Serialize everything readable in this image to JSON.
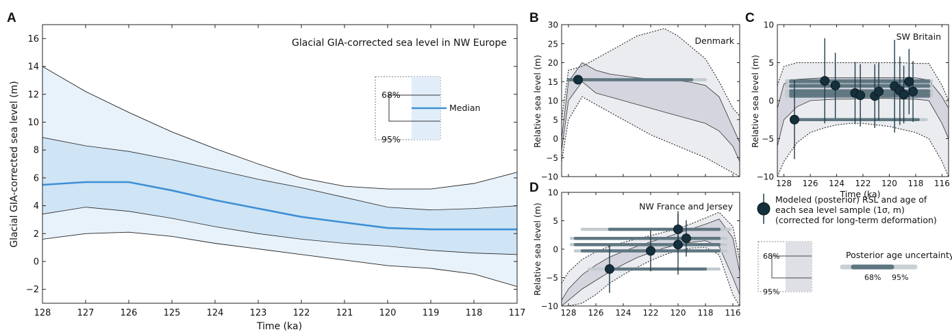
{
  "chart_data": [
    {
      "panel": "A",
      "type": "area",
      "title": "Glacial GIA-corrected sea level in NW Europe",
      "xlabel": "Time (ka)",
      "ylabel": "Glacial GIA-corrected sea level (m)",
      "xlim": [
        128,
        117
      ],
      "ylim": [
        -3,
        17
      ],
      "xticks": [
        "128",
        "127",
        "126",
        "125",
        "124",
        "123",
        "122",
        "121",
        "120",
        "119",
        "118",
        "117"
      ],
      "yticks": [
        "−2",
        "0",
        "2",
        "4",
        "6",
        "8",
        "10",
        "12",
        "14",
        "16"
      ],
      "x": [
        128,
        127,
        126,
        125,
        124,
        123,
        122,
        121,
        120,
        119,
        118,
        117
      ],
      "median": [
        5.5,
        5.7,
        5.7,
        5.1,
        4.4,
        3.8,
        3.2,
        2.8,
        2.4,
        2.3,
        2.3,
        2.3
      ],
      "lower68": [
        3.4,
        3.9,
        3.6,
        3.1,
        2.5,
        2.0,
        1.6,
        1.3,
        1.1,
        0.8,
        0.6,
        0.5
      ],
      "upper68": [
        8.9,
        8.3,
        7.9,
        7.3,
        6.6,
        5.9,
        5.3,
        4.6,
        3.9,
        3.7,
        3.8,
        4.0
      ],
      "lower95": [
        1.6,
        2.0,
        2.1,
        1.8,
        1.3,
        0.9,
        0.5,
        0.1,
        -0.3,
        -0.5,
        -0.9,
        -1.8
      ],
      "upper95": [
        14.0,
        12.2,
        10.7,
        9.3,
        8.1,
        7.0,
        6.0,
        5.4,
        5.2,
        5.2,
        5.6,
        6.4
      ],
      "legend": {
        "inner": "68%",
        "outer": "95%",
        "median": "Median"
      },
      "colors": {
        "band95": "#e8f2fb",
        "band68": "#cfe4f4",
        "median": "#3d8fd6"
      }
    },
    {
      "panel": "B",
      "type": "area",
      "title": "Denmark",
      "xlabel": "",
      "ylabel": "Relative sea level (m)",
      "xlim": [
        128.5,
        115.5
      ],
      "ylim": [
        -10,
        30
      ],
      "yticks": [
        "30",
        "25",
        "20",
        "15",
        "10",
        "5",
        "0",
        "−5",
        "−10"
      ],
      "x": [
        128.5,
        128,
        127,
        126,
        125,
        124,
        123,
        122,
        121,
        120,
        119,
        118,
        117,
        116,
        115.5
      ],
      "lower95": [
        -6,
        5,
        11,
        9,
        7,
        5,
        3,
        1,
        -0.5,
        -2,
        -3.5,
        -5,
        -7,
        -9,
        -10
      ],
      "upper95": [
        5,
        18,
        19,
        21,
        23,
        25,
        27,
        28,
        29,
        27,
        24,
        21,
        15,
        8,
        6
      ],
      "lower68": [
        -3,
        10,
        15,
        12,
        11,
        10,
        9,
        8,
        7,
        6,
        5,
        4,
        2,
        -2,
        -6
      ],
      "upper68": [
        0,
        15,
        20,
        18,
        17,
        16.5,
        16,
        15.7,
        15.5,
        15.3,
        14.8,
        14,
        11,
        3,
        -1
      ],
      "samples": [
        {
          "rsl": 15.5,
          "sigma": 0.8,
          "age": 127.3,
          "age68": [
            128,
            119
          ],
          "age95": [
            128,
            118
          ]
        }
      ],
      "colors": {
        "band95": "#ebecf0",
        "band68": "#d4d5de",
        "ink": "#333333"
      }
    },
    {
      "panel": "C",
      "type": "area",
      "title": "SW Britain",
      "xlabel": "Time (ka)",
      "ylabel": "Relative sea level (m)",
      "xlim": [
        128.5,
        115.5
      ],
      "ylim": [
        -10,
        10
      ],
      "xticks": [
        "128",
        "126",
        "124",
        "122",
        "120",
        "118",
        "116"
      ],
      "yticks": [
        "10",
        "5",
        "0",
        "−5",
        "−10"
      ],
      "x": [
        128.5,
        128,
        127,
        126,
        125,
        124,
        123,
        122,
        121,
        120,
        119,
        118,
        117,
        116,
        115.5
      ],
      "lower95": [
        -10,
        -8,
        -5.5,
        -4.2,
        -3.6,
        -3.2,
        -3.0,
        -3.0,
        -3.2,
        -3.4,
        -3.8,
        -4.2,
        -5,
        -8,
        -10
      ],
      "upper95": [
        2,
        4.5,
        5,
        5,
        5,
        5,
        5,
        5,
        5,
        5,
        5,
        4.9,
        4.9,
        2,
        0
      ],
      "lower68": [
        -6,
        -2.5,
        -0.8,
        0,
        0.1,
        0.2,
        0.2,
        0.3,
        0.3,
        0.3,
        0.2,
        0.2,
        0,
        -3,
        -5
      ],
      "upper68": [
        -1,
        2.2,
        2.8,
        2.9,
        3.0,
        3.0,
        3.0,
        3.0,
        3.0,
        3.0,
        3.0,
        3.0,
        2.7,
        0.5,
        -1
      ],
      "samples": [
        {
          "rsl": -2.5,
          "sigma": 5.2,
          "age": 127.2,
          "age68": [
            127.2,
            117.8
          ],
          "age95": [
            127.2,
            117.2
          ]
        },
        {
          "rsl": 2.6,
          "sigma": 5.6,
          "age": 124.9,
          "age68": [
            127.5,
            117.0
          ],
          "age95": [
            127.8,
            116.8
          ]
        },
        {
          "rsl": 2.0,
          "sigma": 4.3,
          "age": 124.1,
          "age68": [
            127.5,
            117.0
          ],
          "age95": [
            127.8,
            116.8
          ]
        },
        {
          "rsl": 1.0,
          "sigma": 4.1,
          "age": 122.6,
          "age68": [
            127.5,
            117.0
          ],
          "age95": [
            127.8,
            116.8
          ]
        },
        {
          "rsl": 0.7,
          "sigma": 4.1,
          "age": 122.2,
          "age68": [
            127.5,
            117.0
          ],
          "age95": [
            127.8,
            116.8
          ]
        },
        {
          "rsl": 0.6,
          "sigma": 4.2,
          "age": 121.1,
          "age68": [
            127.5,
            117.0
          ],
          "age95": [
            127.8,
            116.8
          ]
        },
        {
          "rsl": 1.2,
          "sigma": 3.8,
          "age": 120.8,
          "age68": [
            127.5,
            117.0
          ],
          "age95": [
            127.8,
            116.8
          ]
        },
        {
          "rsl": 1.9,
          "sigma": 6.1,
          "age": 119.6,
          "age68": [
            127.5,
            117.0
          ],
          "age95": [
            127.8,
            116.8
          ]
        },
        {
          "rsl": 1.3,
          "sigma": 4.5,
          "age": 119.2,
          "age68": [
            127.5,
            117.0
          ],
          "age95": [
            127.8,
            116.8
          ]
        },
        {
          "rsl": 0.8,
          "sigma": 3.8,
          "age": 118.9,
          "age68": [
            127.5,
            117.0
          ],
          "age95": [
            127.8,
            116.8
          ]
        },
        {
          "rsl": 2.5,
          "sigma": 4.3,
          "age": 118.5,
          "age68": [
            127.5,
            117.0
          ],
          "age95": [
            127.8,
            116.8
          ]
        },
        {
          "rsl": 1.2,
          "sigma": 4.0,
          "age": 118.2,
          "age68": [
            127.5,
            117.0
          ],
          "age95": [
            127.8,
            116.8
          ]
        }
      ],
      "colors": {
        "band95": "#ebecf0",
        "band68": "#d4d5de",
        "ink": "#333333"
      }
    },
    {
      "panel": "D",
      "type": "area",
      "title": "NW France and Jersey",
      "xlabel": "",
      "ylabel": "Relative sea level (m)",
      "xlim": [
        128.5,
        115.5
      ],
      "ylim": [
        -10,
        10
      ],
      "xticks": [
        "128",
        "126",
        "124",
        "122",
        "120",
        "118",
        "116"
      ],
      "yticks": [
        "10",
        "5",
        "0",
        "−5",
        "−10"
      ],
      "x": [
        128.5,
        128,
        127,
        126,
        125,
        124,
        123,
        122,
        121,
        120,
        119,
        118,
        117,
        116,
        115.5
      ],
      "lower95": [
        -10,
        -10,
        -9.5,
        -8,
        -6,
        -4.5,
        -3.2,
        -2,
        -1,
        -0.2,
        0.2,
        0.3,
        -1,
        -8,
        -10
      ],
      "upper95": [
        -6,
        -4,
        -1.8,
        -0.5,
        0.5,
        1.2,
        1.8,
        2.4,
        3.0,
        3.6,
        4.5,
        5.5,
        6.5,
        4,
        -2
      ],
      "lower68": [
        -10,
        -9,
        -7,
        -5.5,
        -4.0,
        -2.7,
        -1.5,
        -0.6,
        0.2,
        0.8,
        1.2,
        1.5,
        0.5,
        -5,
        -8
      ],
      "upper68": [
        -9,
        -7,
        -4.5,
        -2.8,
        -1.4,
        -0.4,
        0.5,
        1.3,
        2.0,
        2.8,
        3.6,
        4.4,
        5.3,
        2,
        -4
      ],
      "samples": [
        {
          "rsl": -3.5,
          "sigma": 4.2,
          "age": 125.0,
          "age68": [
            125.0,
            118.0
          ],
          "age95": [
            126.5,
            117.0
          ]
        },
        {
          "rsl": -0.3,
          "sigma": 3.6,
          "age": 122.0,
          "age68": [
            127.0,
            117.0
          ],
          "age95": [
            127.5,
            116.5
          ]
        },
        {
          "rsl": 3.5,
          "sigma": 3.2,
          "age": 120.0,
          "age68": [
            125.0,
            117.0
          ],
          "age95": [
            127.0,
            116.2
          ]
        },
        {
          "rsl": 0.8,
          "sigma": 5.3,
          "age": 120.0,
          "age68": [
            127.5,
            117.0
          ],
          "age95": [
            127.8,
            116.5
          ]
        },
        {
          "rsl": 1.9,
          "sigma": 3.2,
          "age": 119.4,
          "age68": [
            127.5,
            117.0
          ],
          "age95": [
            127.8,
            116.5
          ]
        }
      ],
      "colors": {
        "band95": "#ebecf0",
        "band68": "#d4d5de",
        "ink": "#333333"
      }
    }
  ],
  "legend": {
    "samples_text": [
      "Modeled (posterior) RSL and age of",
      "each sea level sample (1σ, m)",
      "(corrected for long-term deformation)"
    ],
    "inner": "68%",
    "outer": "95%",
    "age_title": "Posterior age uncertainty",
    "age68": "68%",
    "age95": "95%"
  },
  "panel_labels": [
    "A",
    "B",
    "C",
    "D"
  ]
}
